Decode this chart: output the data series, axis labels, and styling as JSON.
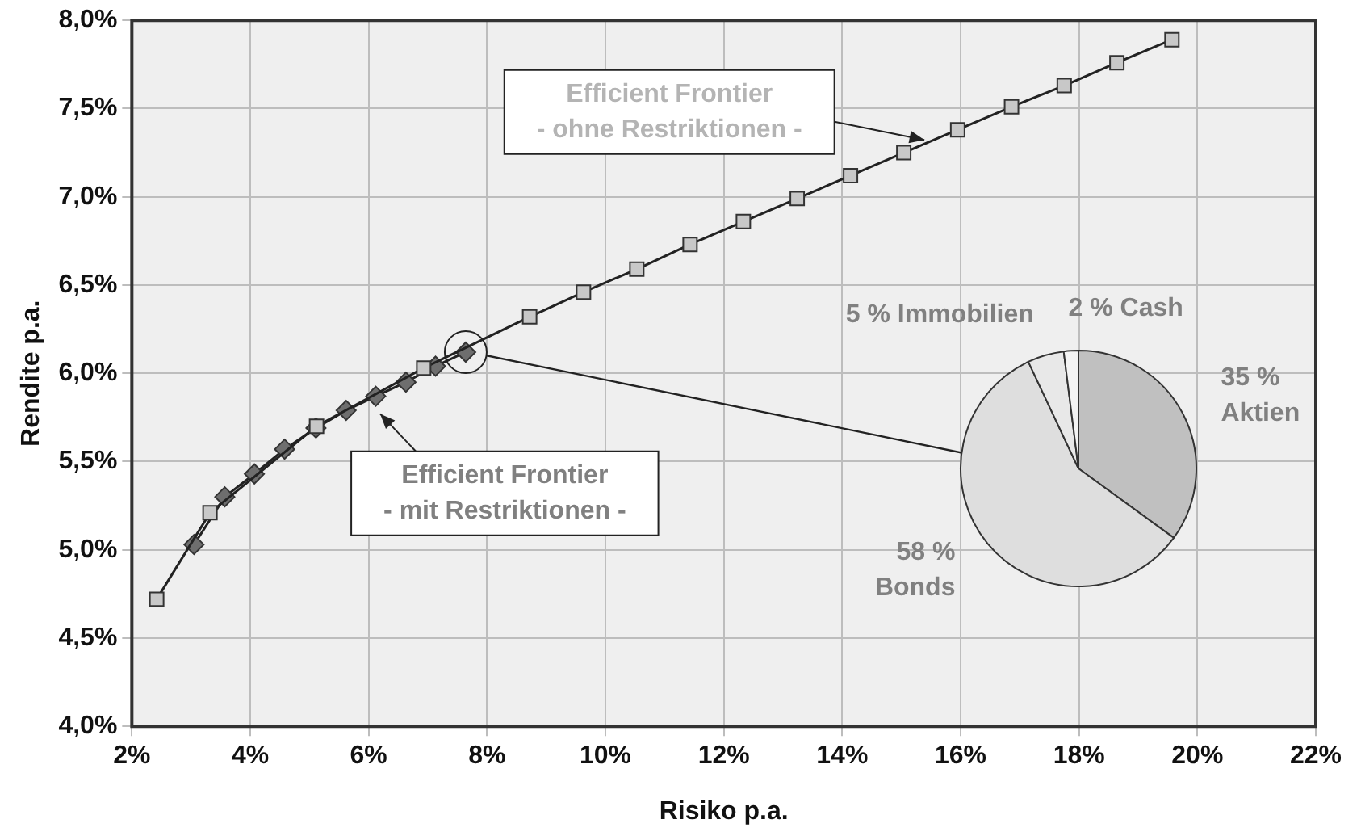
{
  "chart_data": [
    {
      "type": "line",
      "xlabel": "Risiko p.a.",
      "ylabel": "Rendite p.a.",
      "xlim": [
        2,
        22
      ],
      "ylim": [
        4,
        8
      ],
      "xticks": [
        {
          "value": 2,
          "label": "2%"
        },
        {
          "value": 4,
          "label": "4%"
        },
        {
          "value": 6,
          "label": "6%"
        },
        {
          "value": 8,
          "label": "8%"
        },
        {
          "value": 10,
          "label": "10%"
        },
        {
          "value": 12,
          "label": "12%"
        },
        {
          "value": 14,
          "label": "14%"
        },
        {
          "value": 16,
          "label": "16%"
        },
        {
          "value": 18,
          "label": "18%"
        },
        {
          "value": 20,
          "label": "20%"
        },
        {
          "value": 22,
          "label": "22%"
        }
      ],
      "yticks": [
        {
          "value": 4,
          "label": "4,0%"
        },
        {
          "value": 4.5,
          "label": "4,5%"
        },
        {
          "value": 5,
          "label": "5,0%"
        },
        {
          "value": 5.5,
          "label": "5,5%"
        },
        {
          "value": 6,
          "label": "6,0%"
        },
        {
          "value": 6.5,
          "label": "6,5%"
        },
        {
          "value": 7,
          "label": "7,0%"
        },
        {
          "value": 7.5,
          "label": "7,5%"
        },
        {
          "value": 8,
          "label": "8,0%"
        }
      ],
      "grid": true,
      "legend": "bottom left",
      "line_style": "solid",
      "series": [
        {
          "name": "Efficient Frontier\n- ohne Restriktionen -",
          "color": "#c8c8c8",
          "marker": "square",
          "x": [
            2.42,
            3.32,
            5.12,
            6.93,
            8.72,
            9.63,
            10.53,
            11.43,
            12.33,
            13.24,
            14.14,
            15.04,
            15.95,
            16.86,
            17.75,
            18.64,
            19.57
          ],
          "values": [
            4.72,
            5.21,
            5.7,
            6.03,
            6.32,
            6.46,
            6.59,
            6.73,
            6.86,
            6.99,
            7.12,
            7.25,
            7.38,
            7.51,
            7.63,
            7.76,
            7.89
          ]
        },
        {
          "name": "Efficient Frontier\n- mit Restriktionen -",
          "color": "#6e6e6e",
          "marker": "diamond",
          "x": [
            3.05,
            3.57,
            4.07,
            4.58,
            5.11,
            5.62,
            6.12,
            6.63,
            7.13,
            7.64
          ],
          "values": [
            5.03,
            5.3,
            5.43,
            5.57,
            5.69,
            5.79,
            5.87,
            5.95,
            6.04,
            6.12
          ]
        }
      ]
    },
    {
      "type": "pie",
      "categories": [
        "Aktien",
        "Bonds",
        "Immobilien",
        "Cash"
      ],
      "values": [
        35,
        58,
        5,
        2
      ],
      "value_labels": [
        "35 %",
        "58 %",
        "5 %",
        "2 %"
      ],
      "colors": [
        "#c0c0c0",
        "#dedede",
        "#e8e8e8",
        "#f4f4f4"
      ]
    }
  ]
}
